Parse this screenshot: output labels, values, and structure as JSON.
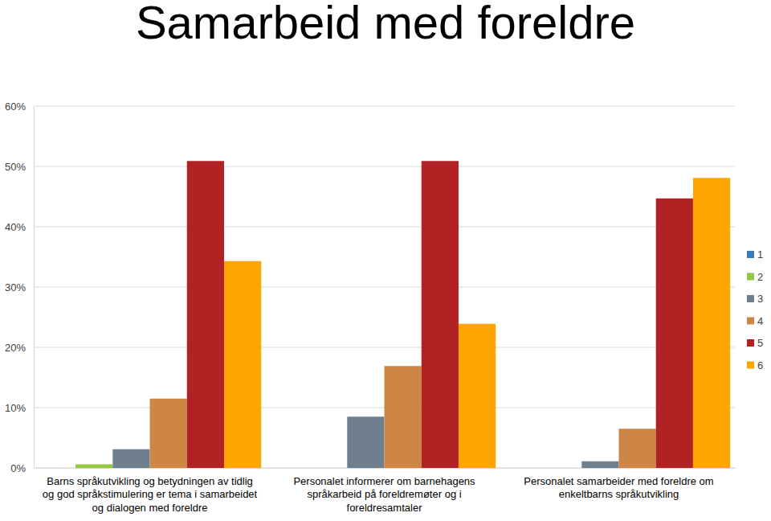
{
  "chart_data": {
    "type": "bar",
    "title": "Samarbeid med foreldre",
    "categories": [
      "Barns språkutvikling og betydningen av tidlig og god språkstimulering er tema i samarbeidet og dialogen med foreldre",
      "Personalet informerer om barnehagens språkarbeid på foreldremøter og i foreldresamtaler",
      "Personalet samarbeider med foreldre om enkeltbarns språkutvikling"
    ],
    "series": [
      {
        "name": "1",
        "color": "#3a7db8",
        "values": [
          0,
          0,
          0
        ]
      },
      {
        "name": "2",
        "color": "#92c83e",
        "values": [
          0.6,
          0,
          0
        ]
      },
      {
        "name": "3",
        "color": "#6f7f8e",
        "values": [
          3.1,
          8.5,
          1.1
        ]
      },
      {
        "name": "4",
        "color": "#cd8644",
        "values": [
          11.5,
          16.9,
          6.5
        ]
      },
      {
        "name": "5",
        "color": "#b02224",
        "values": [
          50.9,
          50.9,
          44.7
        ]
      },
      {
        "name": "6",
        "color": "#ffa500",
        "values": [
          34.3,
          23.9,
          48.1
        ]
      }
    ],
    "ylim": [
      0,
      60
    ],
    "yticks": [
      {
        "value": 0,
        "label": "0%"
      },
      {
        "value": 10,
        "label": "10%"
      },
      {
        "value": 20,
        "label": "20%"
      },
      {
        "value": 30,
        "label": "30%"
      },
      {
        "value": 40,
        "label": "40%"
      },
      {
        "value": 50,
        "label": "50%"
      },
      {
        "value": 60,
        "label": "60%"
      }
    ],
    "grid": true,
    "legend": "right"
  }
}
